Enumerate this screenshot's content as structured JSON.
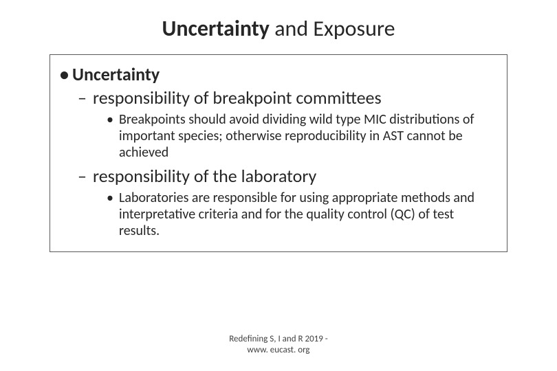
{
  "title": {
    "bold_part": "Uncertainty",
    "regular_part": " and Exposure"
  },
  "content": {
    "level1_heading": "Uncertainty",
    "sub1": {
      "heading": "responsibility of breakpoint committees",
      "detail": "Breakpoints should avoid dividing wild type MIC distributions of important species; otherwise reproducibility in AST cannot be achieved"
    },
    "sub2": {
      "heading": "responsibility of the laboratory",
      "detail": "Laboratories are responsible for using appropriate methods and interpretative criteria and for the quality control (QC) of test results."
    }
  },
  "footer": {
    "line1": "Redefining S, I and R 2019 -",
    "line2": "www. eucast. org"
  }
}
